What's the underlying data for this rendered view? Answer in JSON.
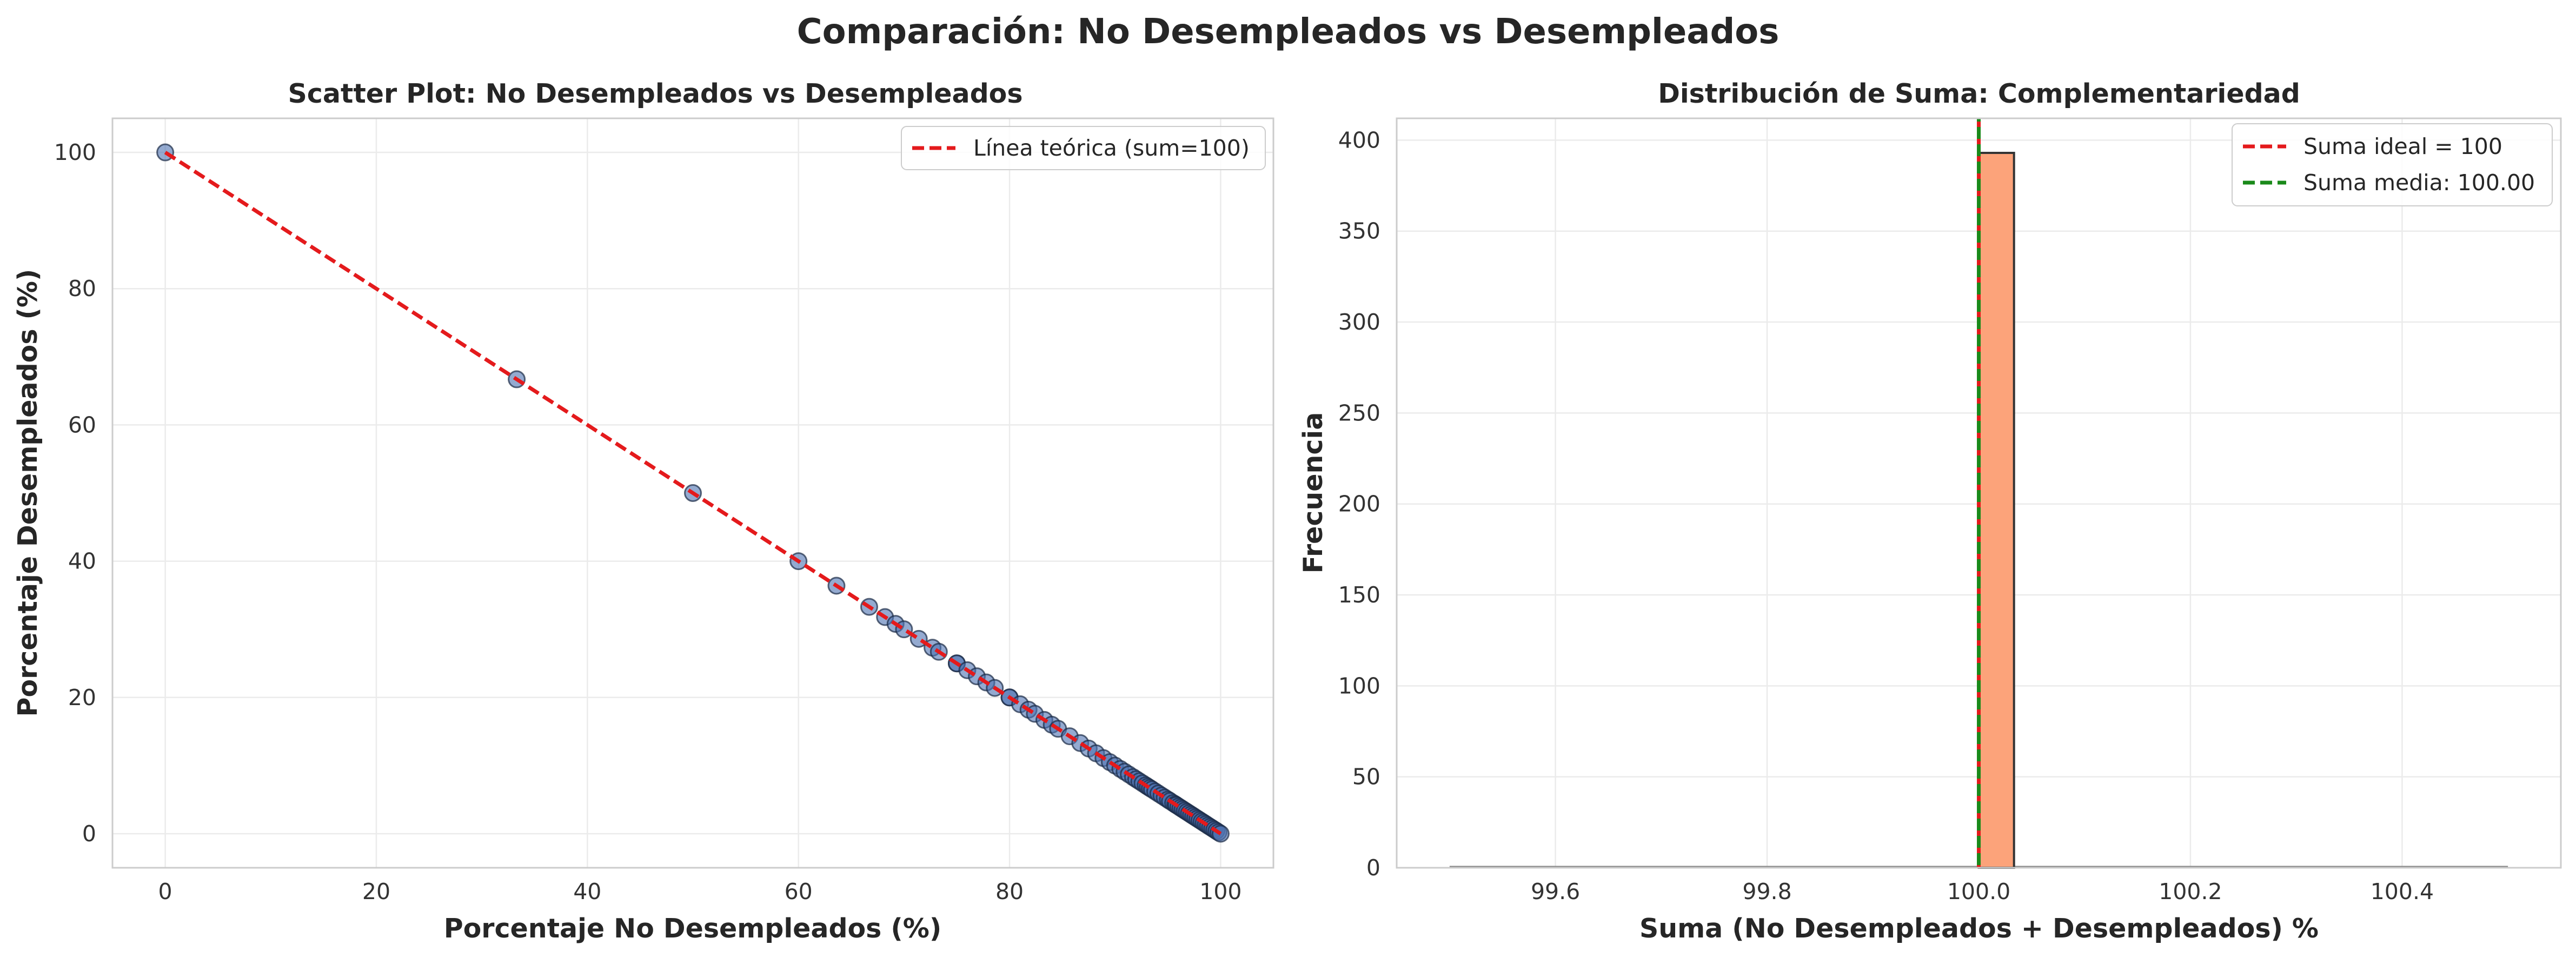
{
  "figure": {
    "title": "Comparación: No Desempleados vs Desempleados"
  },
  "chart_data": [
    {
      "type": "scatter",
      "title": "Scatter Plot: No Desempleados vs Desempleados",
      "xlabel": "Porcentaje No Desempleados (%)",
      "ylabel": "Porcentaje Desempleados (%)",
      "xlim": [
        -5,
        105
      ],
      "ylim": [
        -5,
        105
      ],
      "xticks": [
        0,
        20,
        40,
        60,
        80,
        100
      ],
      "yticks": [
        0,
        20,
        40,
        60,
        80,
        100
      ],
      "grid": true,
      "legend_position": "top-right",
      "point_color": "#4c72b0",
      "line_color": "#e41a1c",
      "series": [
        {
          "name": "",
          "x": [
            0,
            33.3,
            50,
            60,
            63.6,
            66.7,
            68.2,
            69.2,
            70,
            71.4,
            72.7,
            73.3,
            75,
            75,
            76,
            76.9,
            77.8,
            78.6,
            80,
            80,
            81,
            81.8,
            82.4,
            83.3,
            84,
            84.6,
            85.7,
            86.7,
            87.5,
            88.2,
            88.9,
            89.5,
            90,
            90.5,
            90.9,
            91.3,
            91.7,
            92,
            92.3,
            92.6,
            92.9,
            93.1,
            93.3,
            93.5,
            93.8,
            94.1,
            94.4,
            94.7,
            95,
            95.2,
            95.5,
            95.7,
            95.8,
            96,
            96.2,
            96.4,
            96.6,
            96.8,
            97,
            97.2,
            97.4,
            97.6,
            97.8,
            98,
            98.2,
            98.4,
            98.6,
            98.8,
            99,
            99.2,
            99.4,
            99.6,
            99.8,
            100
          ],
          "y": [
            100,
            66.7,
            50,
            40,
            36.4,
            33.3,
            31.8,
            30.8,
            30,
            28.6,
            27.3,
            26.7,
            25,
            25,
            24,
            23.1,
            22.2,
            21.4,
            20,
            20,
            19,
            18.2,
            17.6,
            16.7,
            16,
            15.4,
            14.3,
            13.3,
            12.5,
            11.8,
            11.1,
            10.5,
            10,
            9.5,
            9.1,
            8.7,
            8.3,
            8,
            7.7,
            7.4,
            7.1,
            6.9,
            6.7,
            6.5,
            6.2,
            5.9,
            5.6,
            5.3,
            5,
            4.8,
            4.5,
            4.3,
            4.2,
            4,
            3.8,
            3.6,
            3.4,
            3.2,
            3,
            2.8,
            2.6,
            2.4,
            2.2,
            2,
            1.8,
            1.6,
            1.4,
            1.2,
            1,
            0.8,
            0.6,
            0.4,
            0.2,
            0
          ]
        },
        {
          "name": "Línea teórica (sum=100)",
          "type": "line",
          "style": "dashed",
          "x": [
            0,
            100
          ],
          "y": [
            100,
            0
          ]
        }
      ]
    },
    {
      "type": "bar",
      "subtype": "histogram",
      "title": "Distribución de Suma: Complementariedad",
      "xlabel": "Suma (No Desempleados + Desempleados) %",
      "ylabel": "Frecuencia",
      "xlim": [
        99.45,
        100.55
      ],
      "ylim": [
        0,
        412
      ],
      "xticks": [
        99.6,
        99.8,
        100.0,
        100.2,
        100.4
      ],
      "xtick_labels": [
        "99.6",
        "99.8",
        "100.0",
        "100.2",
        "100.4"
      ],
      "yticks": [
        0,
        50,
        100,
        150,
        200,
        250,
        300,
        350,
        400
      ],
      "grid": true,
      "legend_position": "top-right",
      "bar_color": "#fca37a",
      "bars": [
        {
          "x_start": 100.0,
          "x_end": 100.0333,
          "value": 393
        }
      ],
      "baseline_range": [
        99.5,
        100.5
      ],
      "vlines": [
        {
          "name": "Suma ideal = 100",
          "x": 100.0,
          "color": "#e41a1c"
        },
        {
          "name": "Suma media: 100.00",
          "x": 100.0,
          "color": "#1a8a1a"
        }
      ]
    }
  ]
}
